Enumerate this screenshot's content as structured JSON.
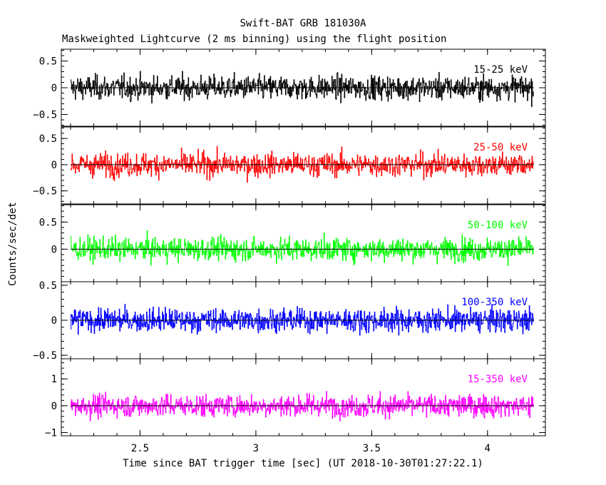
{
  "header": {
    "title": "Swift-BAT GRB 181030A",
    "subtitle": "Maskweighted Lightcurve (2 ms binning) using the flight position"
  },
  "axes": {
    "xlabel": "Time since BAT trigger time [sec] (UT 2018-10-30T01:27:22.1)",
    "ylabel": "Counts/sec/det"
  },
  "chart_data": {
    "type": "line",
    "title": "Swift-BAT GRB 181030A",
    "subtitle": "Maskweighted Lightcurve (2 ms binning) using the flight position",
    "xlabel": "Time since BAT trigger time [sec] (UT 2018-10-30T01:27:22.1)",
    "ylabel": "Counts/sec/det",
    "xlim": [
      2.16,
      4.25
    ],
    "x_range_of_data": [
      2.2,
      4.2
    ],
    "bin_width_sec": 0.002,
    "x_ticks": [
      2.5,
      3,
      3.5,
      4
    ],
    "x_tick_labels": [
      "2.5",
      "3",
      "3.5",
      "4"
    ],
    "grid": false,
    "panels": [
      {
        "name": "15-25 keV",
        "color": "#000000",
        "ylim": [
          -0.72,
          0.72
        ],
        "y_ticks": [
          -0.5,
          0,
          0.5
        ],
        "y_tick_labels": [
          "−0.5",
          "0",
          "0.5"
        ],
        "noise_amplitude": 0.4,
        "mean": 0.0
      },
      {
        "name": "25-50 keV",
        "color": "#ff0000",
        "ylim": [
          -0.75,
          0.72
        ],
        "y_ticks": [
          -0.5,
          0,
          0.5
        ],
        "y_tick_labels": [
          "−0.5",
          "0",
          "0.5"
        ],
        "noise_amplitude": 0.4,
        "mean": 0.0
      },
      {
        "name": "50-100 keV",
        "color": "#00ff00",
        "ylim": [
          -0.6,
          0.82
        ],
        "y_ticks": [
          0,
          0.5
        ],
        "y_tick_labels": [
          "0",
          "0.5"
        ],
        "noise_amplitude": 0.38,
        "mean": 0.0
      },
      {
        "name": "100-350 keV",
        "color": "#0000ff",
        "ylim": [
          -0.55,
          0.55
        ],
        "y_ticks": [
          -0.5,
          0,
          0.5
        ],
        "y_tick_labels": [
          "−0.5",
          "0",
          "0.5"
        ],
        "noise_amplitude": 0.3,
        "mean": 0.0
      },
      {
        "name": "15-350 keV",
        "color": "#ff00ff",
        "ylim": [
          -1.12,
          1.75
        ],
        "y_ticks": [
          -1,
          0,
          1
        ],
        "y_tick_labels": [
          "−1",
          "0",
          "1"
        ],
        "noise_amplitude": 0.75,
        "mean": 0.0
      }
    ]
  }
}
